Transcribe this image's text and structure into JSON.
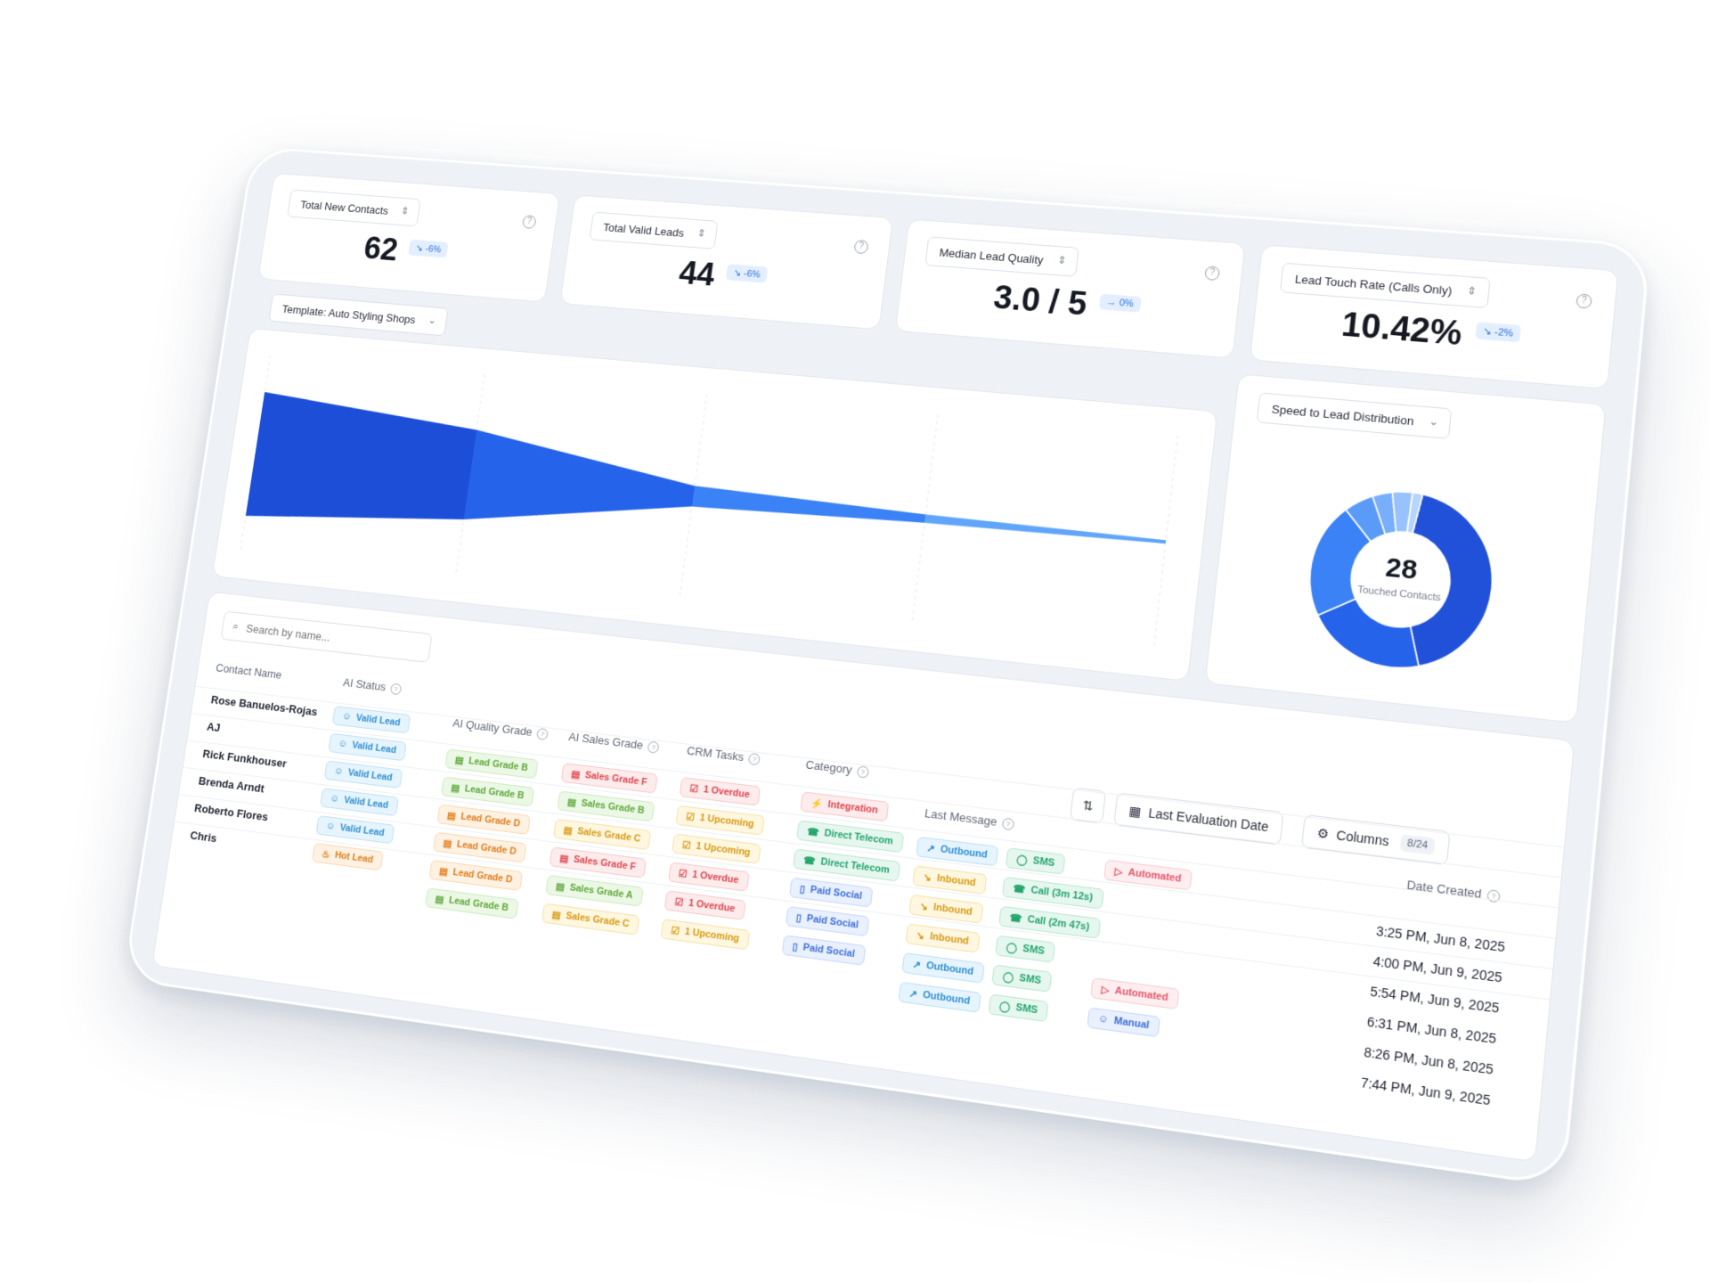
{
  "kpis": [
    {
      "label": "Total New Contacts",
      "value": "62",
      "change": "↘ -6%"
    },
    {
      "label": "Total Valid Leads",
      "value": "44",
      "change": "↘ -6%"
    },
    {
      "label": "Median Lead Quality",
      "value": "3.0 / 5",
      "change": "→ 0%"
    },
    {
      "label": "Lead Touch Rate (Calls Only)",
      "value": "10.42%",
      "change": "↘ -2%"
    }
  ],
  "funnel": {
    "template_label": "Template: Auto Styling Shops"
  },
  "speed": {
    "select_label": "Speed to Lead Distribution",
    "center_value": "28",
    "center_label": "Touched Contacts"
  },
  "chart_data": [
    {
      "type": "area",
      "title": "",
      "stages": [
        62,
        44,
        10,
        4,
        1
      ]
    },
    {
      "type": "pie",
      "title": "",
      "center_value": 28,
      "center_label": "Touched Contacts",
      "values": [
        12,
        6,
        6,
        1.5,
        1,
        1,
        0.5
      ],
      "colors": [
        "#2151d8",
        "#2563eb",
        "#3b82f6",
        "#5b9bf8",
        "#79aefa",
        "#98c2fb",
        "#b6d4fd"
      ]
    }
  ],
  "table": {
    "search_placeholder": "Search by name...",
    "toolbar": {
      "sort_icon": "sort-icon",
      "eval_label": "Last Evaluation Date",
      "columns_label": "Columns",
      "columns_count": "8/24"
    },
    "headers": {
      "name": "Contact Name",
      "status": "AI Status",
      "quality": "AI Quality Grade",
      "sales": "AI Sales Grade",
      "crm": "CRM Tasks",
      "category": "Category",
      "last": "Last Message",
      "date": "Date Created"
    },
    "rows": [
      {
        "name": "Rose Banuelos-Rojas",
        "status": "Valid Lead",
        "quality": "Lead Grade B",
        "sales": "Sales Grade F",
        "crm": "1 Overdue",
        "category": "Integration",
        "dir": "Outbound",
        "channel": "SMS",
        "extra": "Automated",
        "date": "3:25 PM, Jun 8, 2025"
      },
      {
        "name": "AJ",
        "status": "Valid Lead",
        "quality": "Lead Grade B",
        "sales": "Sales Grade B",
        "crm": "1 Upcoming",
        "category": "Direct Telecom",
        "dir": "Inbound",
        "channel": "Call (3m 12s)",
        "extra": "",
        "date": "4:00 PM, Jun 9, 2025"
      },
      {
        "name": "Rick Funkhouser",
        "status": "Valid Lead",
        "quality": "Lead Grade D",
        "sales": "Sales Grade C",
        "crm": "1 Upcoming",
        "category": "Direct Telecom",
        "dir": "Inbound",
        "channel": "Call (2m 47s)",
        "extra": "",
        "date": "5:54 PM, Jun 9, 2025"
      },
      {
        "name": "Brenda Arndt",
        "status": "Valid Lead",
        "quality": "Lead Grade D",
        "sales": "Sales Grade F",
        "crm": "1 Overdue",
        "category": "Paid Social",
        "dir": "Inbound",
        "channel": "SMS",
        "extra": "",
        "date": "6:31 PM, Jun 8, 2025"
      },
      {
        "name": "Roberto Flores",
        "status": "Valid Lead",
        "quality": "Lead Grade D",
        "sales": "Sales Grade A",
        "crm": "1 Overdue",
        "category": "Paid Social",
        "dir": "Outbound",
        "channel": "SMS",
        "extra": "Automated",
        "date": "8:26 PM, Jun 8, 2025"
      },
      {
        "name": "Chris",
        "status": "Hot Lead",
        "quality": "Lead Grade B",
        "sales": "Sales Grade C",
        "crm": "1 Upcoming",
        "category": "Paid Social",
        "dir": "Outbound",
        "channel": "SMS",
        "extra": "Manual",
        "date": "7:44 PM, Jun 9, 2025"
      }
    ]
  },
  "colors": {
    "primary": "#2563eb",
    "primary_dark": "#1d4ed8",
    "background": "#eef1f6"
  }
}
